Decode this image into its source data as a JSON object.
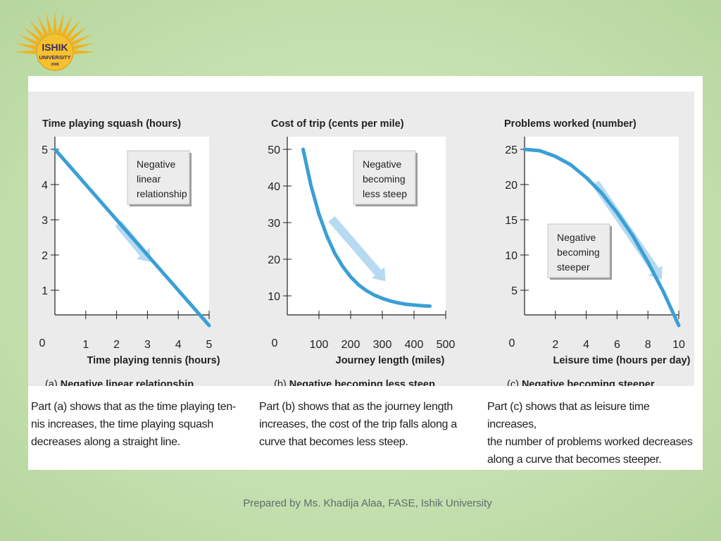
{
  "logo": {
    "name": "ISHIK",
    "subtitle": "UNIVERSITY",
    "year": "2008",
    "color": "#f2b21c"
  },
  "colors": {
    "line": "#3a9fd6",
    "arrow": "#a9d4ef",
    "grid_bg": "#ebebeb",
    "plot_bg": "#ffffff"
  },
  "chart_data": [
    {
      "id": "a",
      "type": "line",
      "title": "Time playing squash (hours)",
      "xlabel": "Time playing tennis (hours)",
      "xlim": [
        0,
        5
      ],
      "ylim": [
        0,
        5
      ],
      "x_ticks": [
        1,
        2,
        3,
        4,
        5
      ],
      "y_ticks": [
        1,
        2,
        3,
        4,
        5
      ],
      "origin_label": "0",
      "points": [
        [
          0,
          5
        ],
        [
          1,
          4
        ],
        [
          2,
          3
        ],
        [
          3,
          2
        ],
        [
          4,
          1
        ],
        [
          5,
          0
        ]
      ],
      "trend_arrow": [
        [
          2.05,
          2.9
        ],
        [
          3.1,
          1.8
        ]
      ],
      "annotation": [
        "Negative",
        "linear",
        "relationship"
      ],
      "caption_letter": "(a)",
      "caption": "Negative linear relationship"
    },
    {
      "id": "b",
      "type": "line",
      "title": "Cost of trip (cents per mile)",
      "xlabel": "Journey length (miles)",
      "xlim": [
        0,
        500
      ],
      "ylim": [
        0,
        50
      ],
      "x_ticks": [
        100,
        200,
        300,
        400,
        500
      ],
      "y_ticks": [
        10,
        20,
        30,
        40,
        50
      ],
      "origin_label": "0",
      "points": [
        [
          50,
          50
        ],
        [
          75,
          40
        ],
        [
          100,
          32.3
        ],
        [
          125,
          26.3
        ],
        [
          150,
          21.6
        ],
        [
          175,
          18
        ],
        [
          200,
          15.2
        ],
        [
          225,
          13
        ],
        [
          250,
          11.4
        ],
        [
          275,
          10.2
        ],
        [
          300,
          9.3
        ],
        [
          325,
          8.6
        ],
        [
          350,
          8.1
        ],
        [
          375,
          7.7
        ],
        [
          400,
          7.5
        ],
        [
          425,
          7.3
        ],
        [
          450,
          7.2
        ]
      ],
      "trend_arrow": [
        [
          140,
          31
        ],
        [
          310,
          14
        ]
      ],
      "annotation": [
        "Negative",
        "becoming",
        "less steep"
      ],
      "caption_letter": "(b)",
      "caption": "Negative becoming less steep"
    },
    {
      "id": "c",
      "type": "line",
      "title": "Problems worked (number)",
      "xlabel": "Leisure time (hours per day)",
      "xlim": [
        0,
        10
      ],
      "ylim": [
        0,
        25
      ],
      "x_ticks": [
        2,
        4,
        6,
        8,
        10
      ],
      "y_ticks": [
        5,
        10,
        15,
        20,
        25
      ],
      "origin_label": "0",
      "points": [
        [
          0,
          25
        ],
        [
          1,
          24.8
        ],
        [
          2,
          24.0
        ],
        [
          3,
          22.8
        ],
        [
          4,
          21.0
        ],
        [
          5,
          18.8
        ],
        [
          6,
          16.0
        ],
        [
          7,
          12.8
        ],
        [
          8,
          9.0
        ],
        [
          9,
          4.8
        ],
        [
          10,
          0
        ]
      ],
      "trend_arrow": [
        [
          4.6,
          20.2
        ],
        [
          8.9,
          6.5
        ]
      ],
      "annotation": [
        "Negative",
        "becoming",
        "steeper"
      ],
      "caption_letter": "(c)",
      "caption": "Negative becoming steeper"
    }
  ],
  "descriptions": [
    [
      "Part (a) shows that as the time playing ten-",
      "nis increases, the time playing squash",
      "decreases along a straight line."
    ],
    [
      "Part (b) shows that as the journey length",
      "increases, the cost of the trip falls along a",
      "curve that becomes less steep."
    ],
    [
      "Part (c) shows that as leisure time increases,",
      "the number of problems worked decreases",
      "along a curve that becomes steeper."
    ]
  ],
  "footer": "Prepared by Ms. Khadija Alaa, FASE, Ishik University"
}
